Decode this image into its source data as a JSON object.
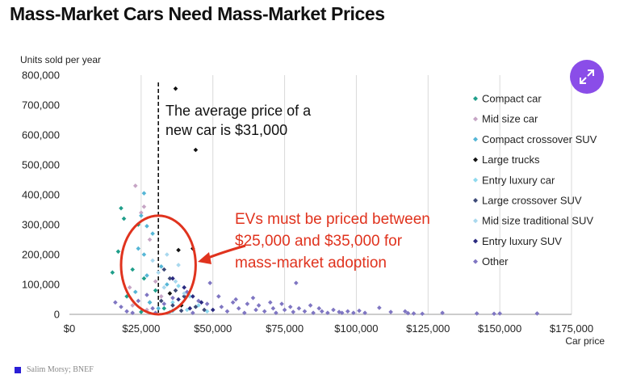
{
  "title": "Mass-Market Cars Need Mass-Market Prices",
  "source": "Salim Morsy; BNEF",
  "colors": {
    "expand_button": "#8a4de8",
    "callout": "#e0331e",
    "source_marker": "#2b1fd6"
  },
  "expand_icon": "expand-arrows-icon",
  "chart_data": {
    "type": "scatter",
    "title": "Mass-Market Cars Need Mass-Market Prices",
    "xlabel": "Car price",
    "ylabel": "Units sold per year",
    "xlim": [
      0,
      175000
    ],
    "ylim": [
      0,
      800000
    ],
    "x_ticks": [
      0,
      25000,
      50000,
      75000,
      100000,
      125000,
      150000,
      175000
    ],
    "x_tick_labels": [
      "$0",
      "$25,000",
      "$50,000",
      "$75,000",
      "$100,000",
      "$125,000",
      "$150,000",
      "$175,000"
    ],
    "y_ticks": [
      0,
      100000,
      200000,
      300000,
      400000,
      500000,
      600000,
      700000,
      800000
    ],
    "y_tick_labels": [
      "0",
      "100,000",
      "200,000",
      "300,000",
      "400,000",
      "500,000",
      "600,000",
      "700,000",
      "800,000"
    ],
    "grid": "vertical",
    "legend_position": "right",
    "reference_line": {
      "x": 31000,
      "style": "dashed"
    },
    "annotations": [
      {
        "text_lines": [
          "The average price of a",
          "new car is $31,000"
        ],
        "color": "#111111"
      },
      {
        "text_lines": [
          "EVs must be priced between",
          "$25,000 and $35,000 for",
          "mass-market adoption"
        ],
        "color": "#e0331e"
      }
    ],
    "highlight_ellipse": {
      "x_range": [
        18000,
        44000
      ],
      "y_range": [
        0,
        330000
      ],
      "color": "#e0331e"
    },
    "series": [
      {
        "name": "Compact car",
        "color": "#1f9e8a",
        "points": [
          [
            18000,
            355000
          ],
          [
            19000,
            320000
          ],
          [
            24000,
            300000
          ],
          [
            17000,
            210000
          ],
          [
            22000,
            150000
          ],
          [
            15000,
            140000
          ],
          [
            26000,
            120000
          ],
          [
            30000,
            80000
          ],
          [
            20000,
            60000
          ],
          [
            28000,
            40000
          ],
          [
            33000,
            20000
          ],
          [
            25000,
            8000
          ]
        ]
      },
      {
        "name": "Mid size car",
        "color": "#c6a5c5",
        "points": [
          [
            23000,
            430000
          ],
          [
            26000,
            360000
          ],
          [
            25000,
            340000
          ],
          [
            28000,
            250000
          ],
          [
            30000,
            110000
          ],
          [
            21000,
            90000
          ],
          [
            32000,
            60000
          ],
          [
            22000,
            30000
          ],
          [
            27000,
            15000
          ]
        ]
      },
      {
        "name": "Compact crossover SUV",
        "color": "#55b6d6",
        "points": [
          [
            26000,
            405000
          ],
          [
            25000,
            330000
          ],
          [
            27000,
            295000
          ],
          [
            29000,
            270000
          ],
          [
            24000,
            220000
          ],
          [
            26000,
            200000
          ],
          [
            32000,
            160000
          ],
          [
            27000,
            130000
          ],
          [
            34000,
            100000
          ],
          [
            23000,
            75000
          ],
          [
            28000,
            40000
          ],
          [
            31000,
            20000
          ],
          [
            36000,
            12000
          ]
        ]
      },
      {
        "name": "Large trucks",
        "color": "#111111",
        "points": [
          [
            37000,
            755000
          ],
          [
            44000,
            550000
          ],
          [
            43000,
            220000
          ],
          [
            38000,
            215000
          ],
          [
            35000,
            70000
          ],
          [
            39000,
            30000
          ]
        ]
      },
      {
        "name": "Entry luxury car",
        "color": "#8fd9ee",
        "points": [
          [
            38000,
            95000
          ],
          [
            42000,
            60000
          ],
          [
            36000,
            40000
          ],
          [
            45000,
            30000
          ],
          [
            41000,
            15000
          ],
          [
            48000,
            10000
          ],
          [
            35000,
            8000
          ]
        ]
      },
      {
        "name": "Large crossover SUV",
        "color": "#3d4a78",
        "points": [
          [
            33000,
            150000
          ],
          [
            35000,
            120000
          ],
          [
            37000,
            80000
          ],
          [
            40000,
            60000
          ],
          [
            32000,
            45000
          ],
          [
            36000,
            30000
          ],
          [
            44000,
            25000
          ],
          [
            47000,
            15000
          ],
          [
            39000,
            12000
          ]
        ]
      },
      {
        "name": "Mid size traditional SUV",
        "color": "#a9d8ee",
        "points": [
          [
            34000,
            200000
          ],
          [
            29000,
            180000
          ],
          [
            38000,
            165000
          ],
          [
            31000,
            140000
          ],
          [
            37000,
            110000
          ],
          [
            33000,
            90000
          ],
          [
            40000,
            70000
          ]
        ]
      },
      {
        "name": "Entry luxury SUV",
        "color": "#2a2a80",
        "points": [
          [
            36000,
            120000
          ],
          [
            40000,
            90000
          ],
          [
            43000,
            60000
          ],
          [
            38000,
            50000
          ],
          [
            46000,
            40000
          ],
          [
            42000,
            20000
          ],
          [
            50000,
            15000
          ]
        ]
      },
      {
        "name": "Other",
        "color": "#7f76c2",
        "points": [
          [
            16000,
            40000
          ],
          [
            18000,
            25000
          ],
          [
            20000,
            10000
          ],
          [
            22000,
            5000
          ],
          [
            24000,
            45000
          ],
          [
            27000,
            65000
          ],
          [
            29000,
            20000
          ],
          [
            30000,
            5000
          ],
          [
            33000,
            35000
          ],
          [
            36000,
            55000
          ],
          [
            41000,
            75000
          ],
          [
            43000,
            5000
          ],
          [
            45000,
            45000
          ],
          [
            48000,
            35000
          ],
          [
            49000,
            105000
          ],
          [
            52000,
            60000
          ],
          [
            53000,
            25000
          ],
          [
            55000,
            10000
          ],
          [
            57000,
            40000
          ],
          [
            58000,
            50000
          ],
          [
            59000,
            20000
          ],
          [
            61000,
            5000
          ],
          [
            62000,
            35000
          ],
          [
            64000,
            55000
          ],
          [
            65000,
            15000
          ],
          [
            66000,
            30000
          ],
          [
            68000,
            10000
          ],
          [
            70000,
            40000
          ],
          [
            71000,
            20000
          ],
          [
            72000,
            5000
          ],
          [
            74000,
            35000
          ],
          [
            75000,
            15000
          ],
          [
            77000,
            25000
          ],
          [
            78000,
            8000
          ],
          [
            79000,
            105000
          ],
          [
            80000,
            20000
          ],
          [
            82000,
            10000
          ],
          [
            84000,
            30000
          ],
          [
            85000,
            5000
          ],
          [
            87000,
            20000
          ],
          [
            88000,
            10000
          ],
          [
            90000,
            5000
          ],
          [
            92000,
            15000
          ],
          [
            94000,
            8000
          ],
          [
            95000,
            5000
          ],
          [
            97000,
            10000
          ],
          [
            99000,
            5000
          ],
          [
            101000,
            12000
          ],
          [
            103000,
            5000
          ],
          [
            108000,
            22000
          ],
          [
            112000,
            8000
          ],
          [
            117000,
            10000
          ],
          [
            118000,
            4000
          ],
          [
            120000,
            3000
          ],
          [
            123000,
            2000
          ],
          [
            130000,
            5000
          ],
          [
            142000,
            3000
          ],
          [
            148000,
            2000
          ],
          [
            150000,
            3000
          ],
          [
            163000,
            3000
          ]
        ]
      }
    ]
  }
}
